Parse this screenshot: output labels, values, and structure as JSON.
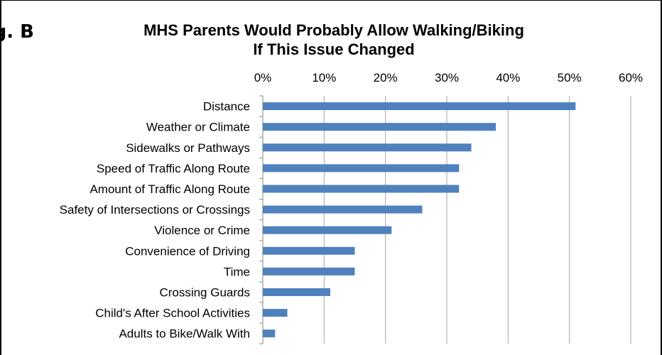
{
  "figure_label": "Fig. B",
  "chart_data": {
    "type": "bar",
    "orientation": "horizontal",
    "title_lines": [
      "MHS Parents Would Probably Allow Walking/Biking",
      "If This Issue Changed"
    ],
    "categories": [
      "Distance",
      "Weather or Climate",
      "Sidewalks or Pathways",
      "Speed of Traffic Along Route",
      "Amount of Traffic Along Route",
      "Safety of Intersections or Crossings",
      "Violence or Crime",
      "Convenience of Driving",
      "Time",
      "Crossing Guards",
      "Child's After School Activities",
      "Adults to Bike/Walk With"
    ],
    "values": [
      51,
      38,
      34,
      32,
      32,
      26,
      21,
      15,
      15,
      11,
      4,
      2
    ],
    "xlim": [
      0,
      60
    ],
    "x_ticks": [
      "0%",
      "10%",
      "20%",
      "30%",
      "40%",
      "50%",
      "60%"
    ],
    "x_axis_position": "top",
    "grid": "vertical",
    "legend": "none",
    "bar_color": "#4F81BD",
    "grid_color": "#A6A6A6"
  }
}
